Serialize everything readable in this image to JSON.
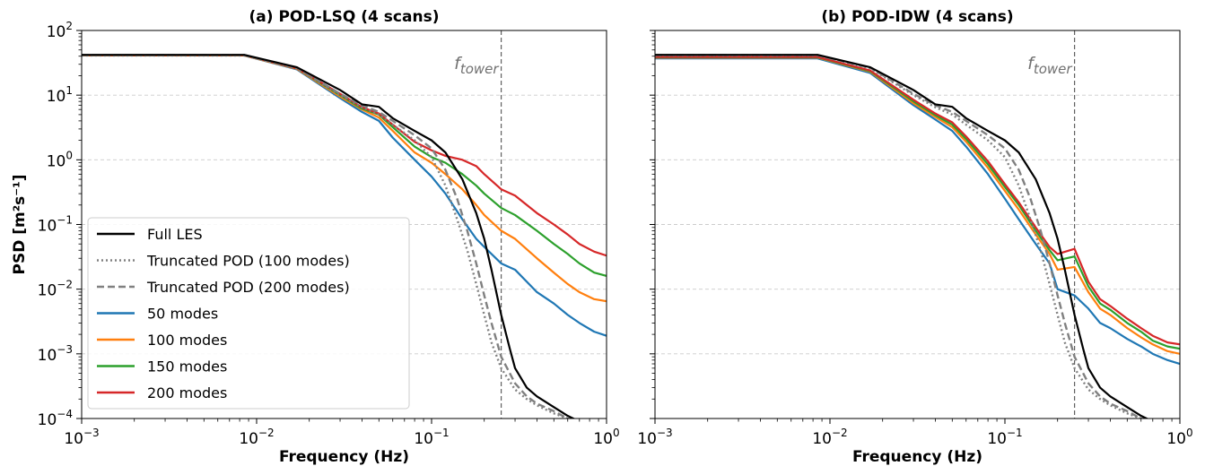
{
  "chart_data": [
    {
      "type": "line",
      "title": "(a) POD-LSQ (4 scans)",
      "xlabel": "Frequency (Hz)",
      "ylabel": "PSD [m²s⁻¹]",
      "xscale": "log",
      "yscale": "log",
      "xlim": [
        0.001,
        1
      ],
      "ylim": [
        0.0001,
        100
      ],
      "grid": "y-dashed",
      "legend_position": "lower-left",
      "annotation": {
        "text": "f",
        "subscript": "tower",
        "x": 0.25
      },
      "xticks": [
        {
          "base": "10",
          "exp": "−3"
        },
        {
          "base": "10",
          "exp": "−2"
        },
        {
          "base": "10",
          "exp": "−1"
        },
        {
          "base": "10",
          "exp": "0"
        }
      ],
      "yticks": [
        {
          "base": "10",
          "exp": "−4"
        },
        {
          "base": "10",
          "exp": "−3"
        },
        {
          "base": "10",
          "exp": "−2"
        },
        {
          "base": "10",
          "exp": "−1"
        },
        {
          "base": "10",
          "exp": "0"
        },
        {
          "base": "10",
          "exp": "1"
        },
        {
          "base": "10",
          "exp": "2"
        }
      ],
      "series": [
        {
          "name": "Full LES",
          "color": "#000000",
          "dash": "solid",
          "x": [
            0.001,
            0.0085,
            0.017,
            0.03,
            0.04,
            0.05,
            0.06,
            0.08,
            0.1,
            0.12,
            0.15,
            0.18,
            0.2,
            0.22,
            0.25,
            0.28,
            0.3,
            0.35,
            0.4,
            0.5,
            0.6,
            0.7,
            0.8
          ],
          "y": [
            42,
            42,
            27,
            12,
            7.2,
            6.6,
            4.4,
            2.8,
            2.0,
            1.3,
            0.5,
            0.15,
            0.06,
            0.02,
            0.004,
            0.0012,
            0.0006,
            0.0003,
            0.00022,
            0.00015,
            0.00011,
            9e-05,
            8e-05
          ]
        },
        {
          "name": "Truncated POD (100 modes)",
          "color": "#808080",
          "dash": "dotted",
          "x": [
            0.001,
            0.0085,
            0.017,
            0.03,
            0.04,
            0.05,
            0.06,
            0.08,
            0.1,
            0.12,
            0.14,
            0.16,
            0.18,
            0.2,
            0.22,
            0.25,
            0.3,
            0.35,
            0.4,
            0.5,
            0.6,
            0.7,
            0.8
          ],
          "y": [
            41,
            41,
            26,
            10,
            6.5,
            5.0,
            3.5,
            2.0,
            1.1,
            0.4,
            0.12,
            0.04,
            0.012,
            0.004,
            0.0015,
            0.0006,
            0.00028,
            0.0002,
            0.00016,
            0.00012,
            0.0001,
            9e-05,
            8e-05
          ]
        },
        {
          "name": "Truncated POD (200 modes)",
          "color": "#808080",
          "dash": "dashed",
          "x": [
            0.001,
            0.0085,
            0.017,
            0.03,
            0.04,
            0.05,
            0.06,
            0.08,
            0.1,
            0.12,
            0.14,
            0.16,
            0.18,
            0.2,
            0.22,
            0.25,
            0.3,
            0.35,
            0.4,
            0.5,
            0.6,
            0.7,
            0.8
          ],
          "y": [
            41.5,
            41.5,
            26.5,
            10.5,
            7.0,
            5.5,
            4.0,
            2.4,
            1.5,
            0.7,
            0.25,
            0.08,
            0.025,
            0.008,
            0.003,
            0.0009,
            0.00035,
            0.00022,
            0.00017,
            0.00013,
            0.0001,
            9e-05,
            8e-05
          ]
        },
        {
          "name": "50 modes",
          "color": "#1f77b4",
          "dash": "solid",
          "x": [
            0.001,
            0.0085,
            0.017,
            0.03,
            0.04,
            0.05,
            0.06,
            0.08,
            0.1,
            0.12,
            0.15,
            0.18,
            0.2,
            0.25,
            0.3,
            0.4,
            0.5,
            0.6,
            0.7,
            0.85,
            1.0
          ],
          "y": [
            41,
            41,
            25,
            9,
            5.5,
            4.0,
            2.2,
            1.0,
            0.55,
            0.3,
            0.12,
            0.06,
            0.045,
            0.025,
            0.02,
            0.009,
            0.006,
            0.004,
            0.003,
            0.0022,
            0.0019
          ]
        },
        {
          "name": "100 modes",
          "color": "#ff7f0e",
          "dash": "solid",
          "x": [
            0.001,
            0.0085,
            0.017,
            0.03,
            0.04,
            0.05,
            0.06,
            0.08,
            0.1,
            0.12,
            0.15,
            0.18,
            0.2,
            0.25,
            0.3,
            0.4,
            0.5,
            0.6,
            0.7,
            0.85,
            1.0
          ],
          "y": [
            41,
            41,
            25.5,
            9.5,
            6.0,
            4.5,
            2.8,
            1.3,
            0.9,
            0.6,
            0.35,
            0.2,
            0.14,
            0.08,
            0.06,
            0.03,
            0.018,
            0.012,
            0.009,
            0.007,
            0.0065
          ]
        },
        {
          "name": "150 modes",
          "color": "#2ca02c",
          "dash": "solid",
          "x": [
            0.001,
            0.0085,
            0.017,
            0.03,
            0.04,
            0.05,
            0.06,
            0.08,
            0.1,
            0.12,
            0.15,
            0.18,
            0.2,
            0.25,
            0.3,
            0.4,
            0.5,
            0.6,
            0.7,
            0.85,
            1.0
          ],
          "y": [
            41.5,
            41.5,
            26,
            10,
            6.2,
            5.0,
            3.2,
            1.6,
            1.1,
            0.9,
            0.6,
            0.4,
            0.3,
            0.18,
            0.14,
            0.08,
            0.05,
            0.035,
            0.025,
            0.018,
            0.016
          ]
        },
        {
          "name": "200 modes",
          "color": "#d62728",
          "dash": "solid",
          "x": [
            0.001,
            0.0085,
            0.017,
            0.03,
            0.04,
            0.05,
            0.06,
            0.08,
            0.1,
            0.12,
            0.15,
            0.18,
            0.2,
            0.25,
            0.3,
            0.4,
            0.5,
            0.6,
            0.7,
            0.85,
            1.0
          ],
          "y": [
            41.5,
            41.5,
            26,
            10.5,
            6.5,
            5.2,
            3.5,
            1.9,
            1.4,
            1.15,
            1.0,
            0.8,
            0.6,
            0.35,
            0.28,
            0.15,
            0.1,
            0.07,
            0.05,
            0.038,
            0.033
          ]
        }
      ]
    },
    {
      "type": "line",
      "title": "(b) POD-IDW (4 scans)",
      "xlabel": "Frequency (Hz)",
      "xscale": "log",
      "yscale": "log",
      "xlim": [
        0.001,
        1
      ],
      "ylim": [
        0.0001,
        100
      ],
      "grid": "y-dashed",
      "annotation": {
        "text": "f",
        "subscript": "tower",
        "x": 0.25
      },
      "xticks": [
        {
          "base": "10",
          "exp": "−3"
        },
        {
          "base": "10",
          "exp": "−2"
        },
        {
          "base": "10",
          "exp": "−1"
        },
        {
          "base": "10",
          "exp": "0"
        }
      ],
      "series": [
        {
          "name": "Full LES",
          "color": "#000000",
          "dash": "solid",
          "x": [
            0.001,
            0.0085,
            0.017,
            0.03,
            0.04,
            0.05,
            0.06,
            0.08,
            0.1,
            0.12,
            0.15,
            0.18,
            0.2,
            0.22,
            0.25,
            0.28,
            0.3,
            0.35,
            0.4,
            0.5,
            0.6,
            0.7,
            0.8
          ],
          "y": [
            42,
            42,
            27,
            12,
            7.2,
            6.6,
            4.4,
            2.8,
            2.0,
            1.3,
            0.5,
            0.15,
            0.06,
            0.02,
            0.004,
            0.0012,
            0.0006,
            0.0003,
            0.00022,
            0.00015,
            0.00011,
            9e-05,
            8e-05
          ]
        },
        {
          "name": "Truncated POD (100 modes)",
          "color": "#808080",
          "dash": "dotted",
          "x": [
            0.001,
            0.0085,
            0.017,
            0.03,
            0.04,
            0.05,
            0.06,
            0.08,
            0.1,
            0.12,
            0.14,
            0.16,
            0.18,
            0.2,
            0.22,
            0.25,
            0.3,
            0.35,
            0.4,
            0.5,
            0.6,
            0.7,
            0.8
          ],
          "y": [
            41,
            41,
            26,
            10,
            6.5,
            5.0,
            3.5,
            2.0,
            1.1,
            0.4,
            0.12,
            0.04,
            0.012,
            0.004,
            0.0015,
            0.0006,
            0.00028,
            0.0002,
            0.00016,
            0.00012,
            0.0001,
            9e-05,
            8e-05
          ]
        },
        {
          "name": "Truncated POD (200 modes)",
          "color": "#808080",
          "dash": "dashed",
          "x": [
            0.001,
            0.0085,
            0.017,
            0.03,
            0.04,
            0.05,
            0.06,
            0.08,
            0.1,
            0.12,
            0.14,
            0.16,
            0.18,
            0.2,
            0.22,
            0.25,
            0.3,
            0.35,
            0.4,
            0.5,
            0.6,
            0.7,
            0.8
          ],
          "y": [
            41.5,
            41.5,
            26.5,
            10.5,
            7.0,
            5.5,
            4.0,
            2.4,
            1.5,
            0.7,
            0.25,
            0.08,
            0.025,
            0.008,
            0.003,
            0.0009,
            0.00035,
            0.00022,
            0.00017,
            0.00013,
            0.0001,
            9e-05,
            8e-05
          ]
        },
        {
          "name": "50 modes",
          "color": "#1f77b4",
          "dash": "solid",
          "x": [
            0.001,
            0.0085,
            0.017,
            0.03,
            0.04,
            0.05,
            0.06,
            0.08,
            0.1,
            0.12,
            0.15,
            0.18,
            0.2,
            0.25,
            0.3,
            0.35,
            0.4,
            0.5,
            0.6,
            0.7,
            0.85,
            1.0
          ],
          "y": [
            37,
            37,
            22,
            7,
            4.2,
            2.8,
            1.6,
            0.6,
            0.25,
            0.12,
            0.05,
            0.025,
            0.01,
            0.008,
            0.005,
            0.003,
            0.0025,
            0.0017,
            0.0013,
            0.001,
            0.0008,
            0.0007
          ]
        },
        {
          "name": "100 modes",
          "color": "#ff7f0e",
          "dash": "solid",
          "x": [
            0.001,
            0.0085,
            0.017,
            0.03,
            0.04,
            0.05,
            0.06,
            0.08,
            0.1,
            0.12,
            0.15,
            0.18,
            0.2,
            0.25,
            0.3,
            0.35,
            0.4,
            0.5,
            0.6,
            0.7,
            0.85,
            1.0
          ],
          "y": [
            38,
            38,
            23,
            7.5,
            4.6,
            3.2,
            1.9,
            0.75,
            0.33,
            0.17,
            0.07,
            0.035,
            0.02,
            0.022,
            0.009,
            0.005,
            0.004,
            0.0025,
            0.0018,
            0.0014,
            0.0011,
            0.001
          ]
        },
        {
          "name": "150 modes",
          "color": "#2ca02c",
          "dash": "solid",
          "x": [
            0.001,
            0.0085,
            0.017,
            0.03,
            0.04,
            0.05,
            0.06,
            0.08,
            0.1,
            0.12,
            0.15,
            0.18,
            0.2,
            0.25,
            0.3,
            0.35,
            0.4,
            0.5,
            0.6,
            0.7,
            0.85,
            1.0
          ],
          "y": [
            38.5,
            38.5,
            23.5,
            8,
            4.9,
            3.5,
            2.1,
            0.85,
            0.38,
            0.2,
            0.08,
            0.04,
            0.028,
            0.032,
            0.011,
            0.006,
            0.0048,
            0.003,
            0.0022,
            0.0016,
            0.0013,
            0.0012
          ]
        },
        {
          "name": "200 modes",
          "color": "#d62728",
          "dash": "solid",
          "x": [
            0.001,
            0.0085,
            0.017,
            0.03,
            0.04,
            0.05,
            0.06,
            0.08,
            0.1,
            0.12,
            0.15,
            0.18,
            0.2,
            0.25,
            0.3,
            0.35,
            0.4,
            0.5,
            0.6,
            0.7,
            0.85,
            1.0
          ],
          "y": [
            39,
            39,
            24,
            8.5,
            5.2,
            3.8,
            2.3,
            0.95,
            0.42,
            0.22,
            0.09,
            0.045,
            0.035,
            0.042,
            0.013,
            0.007,
            0.0055,
            0.0035,
            0.0025,
            0.0019,
            0.0015,
            0.0014
          ]
        }
      ]
    }
  ]
}
